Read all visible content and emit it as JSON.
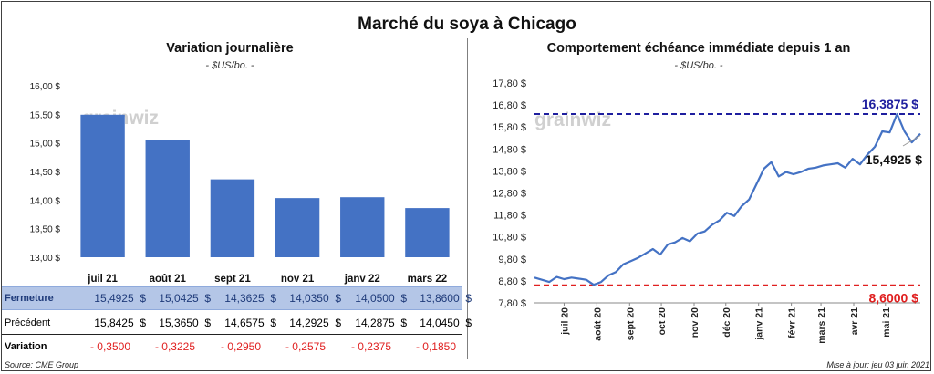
{
  "title": "Marché du soya à Chicago",
  "left_chart": {
    "subtitle": "Variation  journalière",
    "unit": "- $US/bo. -",
    "watermark": "grainwiz"
  },
  "right_chart": {
    "subtitle": "Comportement  échéance immédiate depuis 1 an",
    "unit": "- $US/bo. -",
    "watermark": "grainwiz",
    "high_label": "16,3875 $",
    "low_label": "8,6000 $",
    "last_label": "15,4925 $"
  },
  "table": {
    "rows": [
      {
        "label": "Fermeture",
        "values": [
          "15,4925  $",
          "15,0425  $",
          "14,3625  $",
          "14,0350  $",
          "14,0500  $",
          "13,8600  $"
        ]
      },
      {
        "label": "Précédent",
        "values": [
          "15,8425  $",
          "15,3650  $",
          "14,6575  $",
          "14,2925  $",
          "14,2875  $",
          "14,0450  $"
        ]
      },
      {
        "label": "Variation",
        "values": [
          "- 0,3500",
          "- 0,3225",
          "- 0,2950",
          "- 0,2575",
          "- 0,2375",
          "- 0,1850"
        ]
      }
    ]
  },
  "footer": {
    "source": "Source: CME Group",
    "updated": "Mise à jour: jeu 03 juin 2021"
  },
  "colors": {
    "bar": "#4472c4",
    "line": "#4472c4",
    "high_line": "#1f1f9f",
    "low_line": "#e02020",
    "negative": "#e02020",
    "fermeture_bg": "#b4c6e7"
  },
  "chart_data": [
    {
      "type": "bar",
      "title": "Variation  journalière",
      "ylabel": "- $US/bo. -",
      "categories": [
        "juil 21",
        "août 21",
        "sept 21",
        "nov 21",
        "janv 22",
        "mars 22"
      ],
      "values": [
        15.4925,
        15.0425,
        14.3625,
        14.035,
        14.05,
        13.86
      ],
      "ylim": [
        13.0,
        16.0
      ],
      "yticks": [
        "16,00 $",
        "15,50 $",
        "15,00 $",
        "14,50 $",
        "14,00 $",
        "13,50 $",
        "13,00 $"
      ],
      "grid": false
    },
    {
      "type": "line",
      "title": "Comportement  échéance immédiate depuis 1 an",
      "ylabel": "- $US/bo. -",
      "ylim": [
        7.8,
        17.8
      ],
      "yticks": [
        "17,80 $",
        "16,80 $",
        "15,80 $",
        "14,80 $",
        "13,80 $",
        "12,80 $",
        "11,80 $",
        "10,80 $",
        "9,80 $",
        "8,80 $",
        "7,80 $"
      ],
      "xticks": [
        "juil 20",
        "août 20",
        "sept 20",
        "oct 20",
        "nov 20",
        "déc 20",
        "janv 21",
        "févr 21",
        "mars 21",
        "avr 21",
        "mai 21"
      ],
      "reference_lines": [
        {
          "label": "16,3875 $",
          "y": 16.3875
        },
        {
          "label": "8,6000 $",
          "y": 8.6
        }
      ],
      "series": [
        {
          "x": [
            "2020-06-03",
            "2020-06-10",
            "2020-06-17",
            "2020-06-24",
            "2020-07-01",
            "2020-07-08",
            "2020-07-15",
            "2020-07-22",
            "2020-07-29",
            "2020-08-05",
            "2020-08-12",
            "2020-08-19",
            "2020-08-26",
            "2020-09-02",
            "2020-09-09",
            "2020-09-16",
            "2020-09-23",
            "2020-09-30",
            "2020-10-07",
            "2020-10-14",
            "2020-10-21",
            "2020-10-28",
            "2020-11-04",
            "2020-11-11",
            "2020-11-18",
            "2020-11-25",
            "2020-12-02",
            "2020-12-09",
            "2020-12-16",
            "2020-12-23",
            "2020-12-30",
            "2021-01-06",
            "2021-01-13",
            "2021-01-20",
            "2021-01-27",
            "2021-02-03",
            "2021-02-10",
            "2021-02-17",
            "2021-02-24",
            "2021-03-03",
            "2021-03-10",
            "2021-03-17",
            "2021-03-24",
            "2021-03-31",
            "2021-04-07",
            "2021-04-14",
            "2021-04-21",
            "2021-04-28",
            "2021-05-05",
            "2021-05-12",
            "2021-05-19",
            "2021-05-26",
            "2021-06-03"
          ],
          "values": [
            8.95,
            8.85,
            8.75,
            8.98,
            8.88,
            8.95,
            8.9,
            8.85,
            8.62,
            8.75,
            9.05,
            9.2,
            9.55,
            9.7,
            9.85,
            10.05,
            10.25,
            10.0,
            10.45,
            10.55,
            10.75,
            10.6,
            10.95,
            11.05,
            11.35,
            11.55,
            11.9,
            11.75,
            12.2,
            12.5,
            13.2,
            13.9,
            14.2,
            13.55,
            13.75,
            13.65,
            13.75,
            13.9,
            13.95,
            14.05,
            14.1,
            14.15,
            13.95,
            14.35,
            14.1,
            14.55,
            14.9,
            15.6,
            15.55,
            16.3875,
            15.6,
            15.1,
            15.4925
          ]
        }
      ],
      "grid": false
    }
  ]
}
